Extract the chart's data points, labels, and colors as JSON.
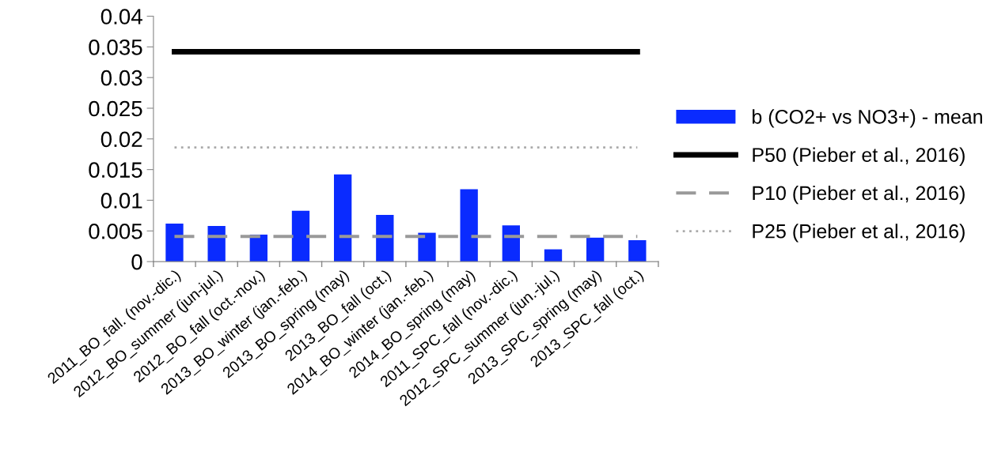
{
  "chart_data": {
    "type": "bar",
    "categories": [
      "2011_BO_fall. (nov.-dic.)",
      "2012_BO_summer (jun-jul.)",
      "2012_BO_fall (oct.-nov.)",
      "2013_BO_winter (jan.-feb.)",
      "2013_BO_spring (may)",
      "2013_BO_fall (oct.)",
      "2014_BO_winter (jan.-feb.)",
      "2014_BO_spring (may)",
      "2011_SPC_fall (nov.-dic.)",
      "2012_SPC_summer (jun.-jul.)",
      "2013_SPC_spring (may)",
      "2013_SPC_fall (oct.)"
    ],
    "series": [
      {
        "name": "b (CO2+ vs NO3+) - mean",
        "color": "#0a2bff",
        "values": [
          0.0062,
          0.0058,
          0.0044,
          0.0083,
          0.0142,
          0.0076,
          0.0047,
          0.0118,
          0.0059,
          0.002,
          0.0039,
          0.0035
        ]
      },
      {
        "name": "P50 (Pieber et al., 2016)",
        "type": "line",
        "color": "#000000",
        "line_style": "solid",
        "values": [
          0.0342,
          0.0342,
          0.0342,
          0.0342,
          0.0342,
          0.0342,
          0.0342,
          0.0342,
          0.0342,
          0.0342,
          0.0342,
          0.0342
        ]
      },
      {
        "name": "P10 (Pieber et al., 2016)",
        "type": "line",
        "color": "#999999",
        "line_style": "dashed",
        "values": [
          0.0041,
          0.0041,
          0.0041,
          0.0041,
          0.0041,
          0.0041,
          0.0041,
          0.0041,
          0.0041,
          0.0041,
          0.0041,
          0.0041
        ]
      },
      {
        "name": "P25 (Pieber et al., 2016)",
        "type": "line",
        "color": "#aaaaaa",
        "line_style": "dotted",
        "values": [
          0.0186,
          0.0186,
          0.0186,
          0.0186,
          0.0186,
          0.0186,
          0.0186,
          0.0186,
          0.0186,
          0.0186,
          0.0186,
          0.0186
        ]
      }
    ],
    "ylim": [
      0,
      0.04
    ],
    "yticks": [
      0,
      0.005,
      0.01,
      0.015,
      0.02,
      0.025,
      0.03,
      0.035,
      0.04
    ],
    "grid": false,
    "legend": "right",
    "marker": "none"
  }
}
